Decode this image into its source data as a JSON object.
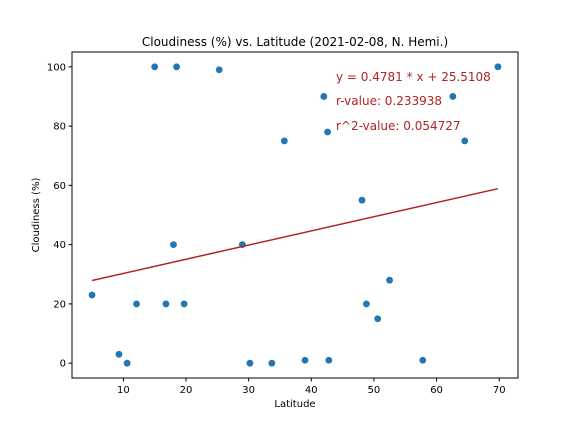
{
  "chart_data": {
    "type": "scatter",
    "title": "Cloudiness (%) vs. Latitude (2021-02-08, N. Hemi.)",
    "xlabel": "Latitude",
    "ylabel": "Cloudiness (%)",
    "xlim": [
      1.8,
      73
    ],
    "ylim": [
      -5,
      105
    ],
    "xticks": [
      "10",
      "20",
      "30",
      "40",
      "50",
      "60",
      "70"
    ],
    "yticks": [
      "0",
      "20",
      "40",
      "60",
      "80",
      "100"
    ],
    "grid": false,
    "point_color": "#1f77b4",
    "line_color": "#b22222",
    "points": [
      {
        "x": 5.0,
        "y": 23
      },
      {
        "x": 9.3,
        "y": 3
      },
      {
        "x": 10.6,
        "y": 0
      },
      {
        "x": 12.1,
        "y": 20
      },
      {
        "x": 15.0,
        "y": 100
      },
      {
        "x": 16.8,
        "y": 20
      },
      {
        "x": 18.0,
        "y": 40
      },
      {
        "x": 18.5,
        "y": 100
      },
      {
        "x": 19.7,
        "y": 20
      },
      {
        "x": 25.3,
        "y": 99
      },
      {
        "x": 29.0,
        "y": 40
      },
      {
        "x": 30.2,
        "y": 0
      },
      {
        "x": 33.7,
        "y": 0
      },
      {
        "x": 35.7,
        "y": 75
      },
      {
        "x": 39.0,
        "y": 1
      },
      {
        "x": 42.0,
        "y": 90
      },
      {
        "x": 42.6,
        "y": 78
      },
      {
        "x": 42.8,
        "y": 1
      },
      {
        "x": 48.1,
        "y": 55
      },
      {
        "x": 48.8,
        "y": 20
      },
      {
        "x": 50.6,
        "y": 15
      },
      {
        "x": 52.5,
        "y": 28
      },
      {
        "x": 57.8,
        "y": 1
      },
      {
        "x": 62.6,
        "y": 90
      },
      {
        "x": 64.5,
        "y": 75
      },
      {
        "x": 69.8,
        "y": 100
      }
    ],
    "regression": {
      "slope": 0.4781,
      "intercept": 25.5108,
      "x_start": 5.0,
      "x_end": 69.8
    },
    "annotations": {
      "equation": "y = 0.4781 * x + 25.5108",
      "r_value": "r-value: 0.233938",
      "r2_value": "r^2-value: 0.054727"
    }
  }
}
